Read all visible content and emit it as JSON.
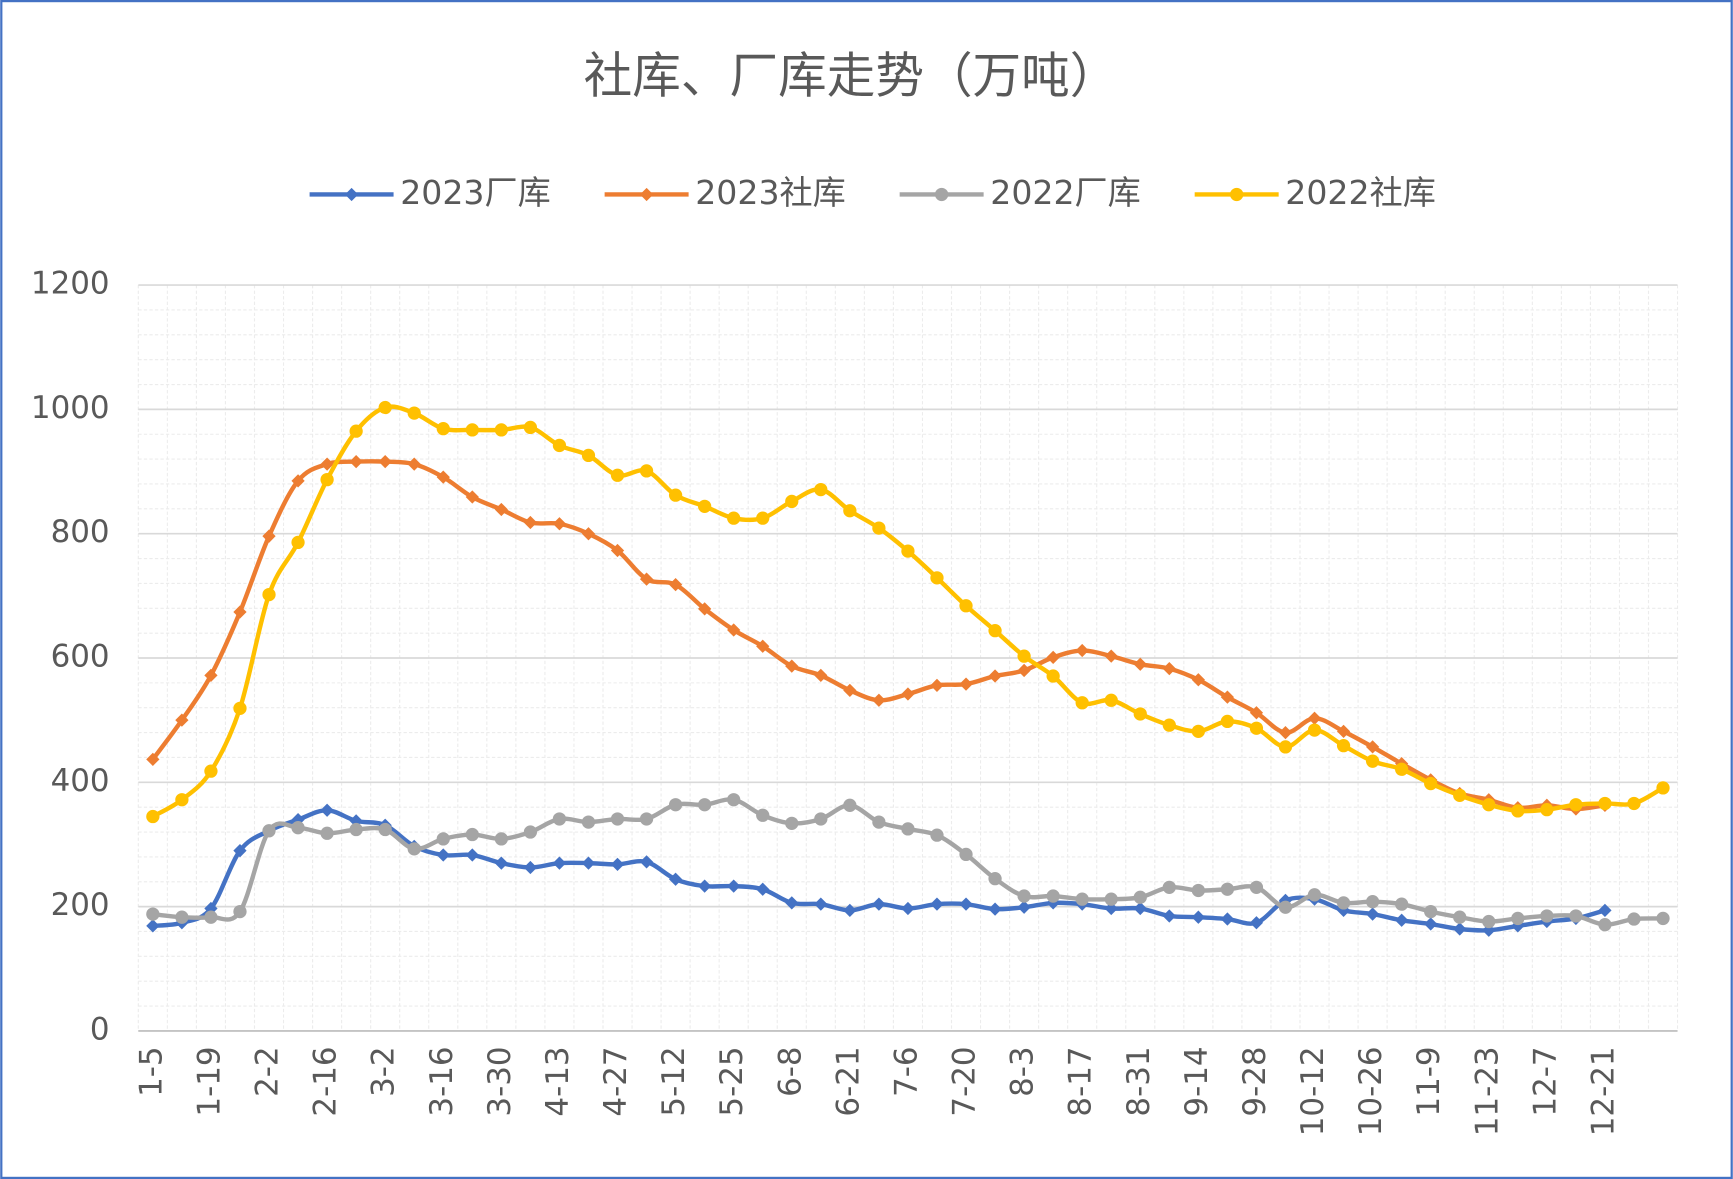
{
  "chart_data": {
    "type": "line",
    "title": "社库、厂库走势（万吨）",
    "categories": [
      "1-5",
      null,
      "1-19",
      null,
      "2-2",
      null,
      "2-16",
      null,
      "3-2",
      null,
      "3-16",
      null,
      "3-30",
      null,
      "4-13",
      null,
      "4-27",
      null,
      "5-12",
      null,
      "5-25",
      null,
      "6-8",
      null,
      "6-21",
      null,
      "7-6",
      null,
      "7-20",
      null,
      "8-3",
      null,
      "8-17",
      null,
      "8-31",
      null,
      "9-14",
      null,
      "9-28",
      null,
      "10-12",
      null,
      "10-26",
      null,
      "11-9",
      null,
      "11-23",
      null,
      "12-7",
      null,
      "12-21",
      null,
      null
    ],
    "series": [
      {
        "name": "2023厂库",
        "color": "#4472c4",
        "marker": "diamond",
        "values": [
          169,
          174,
          197,
          290,
          322,
          340,
          355,
          338,
          331,
          297,
          283,
          283,
          270,
          263,
          270,
          270,
          268,
          272,
          244,
          233,
          233,
          228,
          206,
          204,
          194,
          204,
          197,
          204,
          204,
          196,
          199,
          206,
          204,
          197,
          197,
          185,
          183,
          180,
          174,
          210,
          212,
          194,
          188,
          178,
          172,
          164,
          162,
          169,
          176,
          181,
          194,
          null,
          null
        ]
      },
      {
        "name": "2023社库",
        "color": "#ed7d31",
        "marker": "diamond",
        "values": [
          437,
          500,
          572,
          674,
          796,
          885,
          912,
          916,
          916,
          912,
          891,
          859,
          839,
          818,
          816,
          800,
          773,
          727,
          718,
          679,
          645,
          619,
          587,
          572,
          548,
          532,
          542,
          556,
          558,
          571,
          580,
          601,
          612,
          603,
          590,
          583,
          565,
          537,
          512,
          480,
          503,
          482,
          457,
          430,
          404,
          382,
          372,
          359,
          363,
          357,
          363,
          null,
          null
        ]
      },
      {
        "name": "2022厂库",
        "color": "#a5a5a5",
        "marker": "circle",
        "values": [
          188,
          183,
          183,
          192,
          322,
          327,
          318,
          324,
          324,
          293,
          309,
          316,
          309,
          320,
          341,
          336,
          341,
          341,
          364,
          364,
          372,
          347,
          334,
          341,
          363,
          336,
          325,
          315,
          284,
          245,
          217,
          217,
          212,
          212,
          215,
          231,
          226,
          228,
          231,
          199,
          219,
          206,
          208,
          204,
          192,
          183,
          176,
          181,
          185,
          185,
          171,
          180,
          181
        ]
      },
      {
        "name": "2022社库",
        "color": "#ffc000",
        "marker": "circle",
        "values": [
          345,
          372,
          418,
          519,
          702,
          786,
          887,
          965,
          1003,
          994,
          969,
          967,
          967,
          971,
          942,
          926,
          894,
          901,
          862,
          844,
          825,
          825,
          852,
          871,
          837,
          809,
          772,
          729,
          684,
          644,
          603,
          571,
          528,
          532,
          510,
          492,
          482,
          498,
          487,
          457,
          484,
          459,
          434,
          421,
          398,
          379,
          364,
          354,
          356,
          364,
          366,
          366,
          391
        ]
      }
    ],
    "ylim": [
      0,
      1200
    ],
    "yticks": [
      0,
      200,
      400,
      600,
      800,
      1000,
      1200
    ],
    "grid": true,
    "minor_grid": true,
    "legend": "top",
    "smooth": true
  }
}
